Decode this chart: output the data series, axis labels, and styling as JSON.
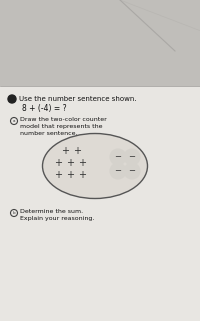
{
  "bg_color": "#c8c6c4",
  "paper_color": "#e8e6e2",
  "paper_top_color": "#d0ceca",
  "title_bullet": "Use the number sentence shown.",
  "equation": "8 + (-4) = ?",
  "part_a_label": "Draw the two-color counter\nmodel that represents the\nnumber sentence.",
  "part_b_label": "Determine the sum.\nExplain your reasoning.",
  "num_positive": 8,
  "num_negative": 4,
  "font_size_main": 5.0,
  "font_size_eq": 5.5,
  "font_size_small": 4.5,
  "font_size_plus": 7.0,
  "font_size_minus": 6.0
}
